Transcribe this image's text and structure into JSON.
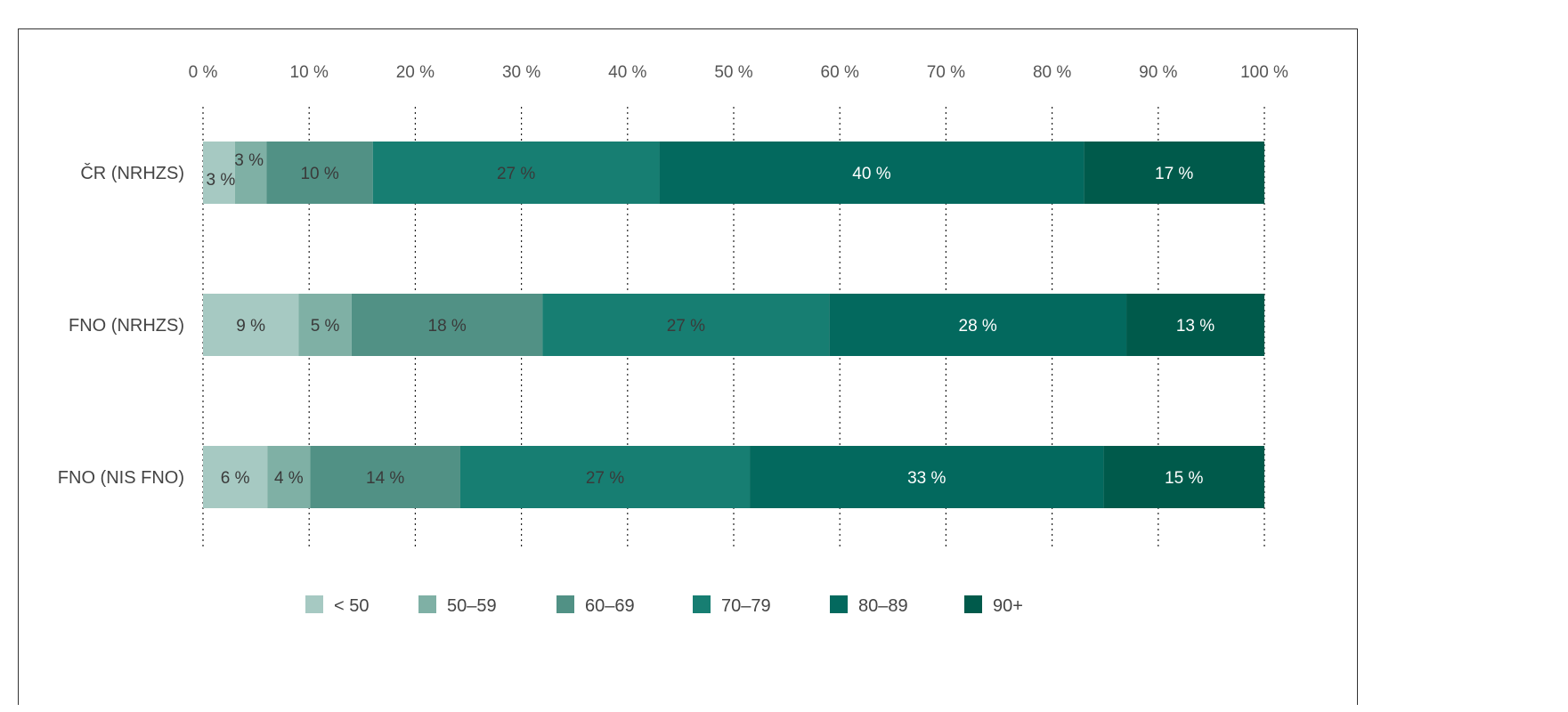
{
  "chart_data": {
    "type": "bar",
    "orientation": "horizontal",
    "stacked": true,
    "title": "",
    "xlabel": "",
    "ylabel": "",
    "xlim": [
      0,
      100
    ],
    "x_ticks": [
      "0 %",
      "10 %",
      "20 %",
      "30 %",
      "40 %",
      "50 %",
      "60 %",
      "70 %",
      "80 %",
      "90 %",
      "100 %"
    ],
    "grid": "vertical dotted",
    "legend_position": "bottom",
    "categories": [
      "ČR (NRHZS)",
      "FNO (NRHZS)",
      "FNO (NIS FNO)"
    ],
    "series": [
      {
        "name": "< 50",
        "color": "#a6c9c2",
        "values": [
          3,
          9,
          6
        ],
        "labels": [
          "3 %",
          "9 %",
          "6 %"
        ]
      },
      {
        "name": "50–59",
        "color": "#7fb0a5",
        "values": [
          3,
          5,
          4
        ],
        "labels": [
          "3 %",
          "5 %",
          "4 %"
        ]
      },
      {
        "name": "60–69",
        "color": "#519185",
        "values": [
          10,
          18,
          14
        ],
        "labels": [
          "10 %",
          "18 %",
          "14 %"
        ]
      },
      {
        "name": "70–79",
        "color": "#177e72",
        "values": [
          27,
          27,
          27
        ],
        "labels": [
          "27 %",
          "27 %",
          "27 %"
        ]
      },
      {
        "name": "80–89",
        "color": "#03695e",
        "values": [
          40,
          28,
          33
        ],
        "labels": [
          "40 %",
          "28 %",
          "33 %"
        ]
      },
      {
        "name": "90+",
        "color": "#005a4b",
        "values": [
          17,
          13,
          15
        ],
        "labels": [
          "17 %",
          "13 %",
          "15 %"
        ]
      }
    ]
  }
}
